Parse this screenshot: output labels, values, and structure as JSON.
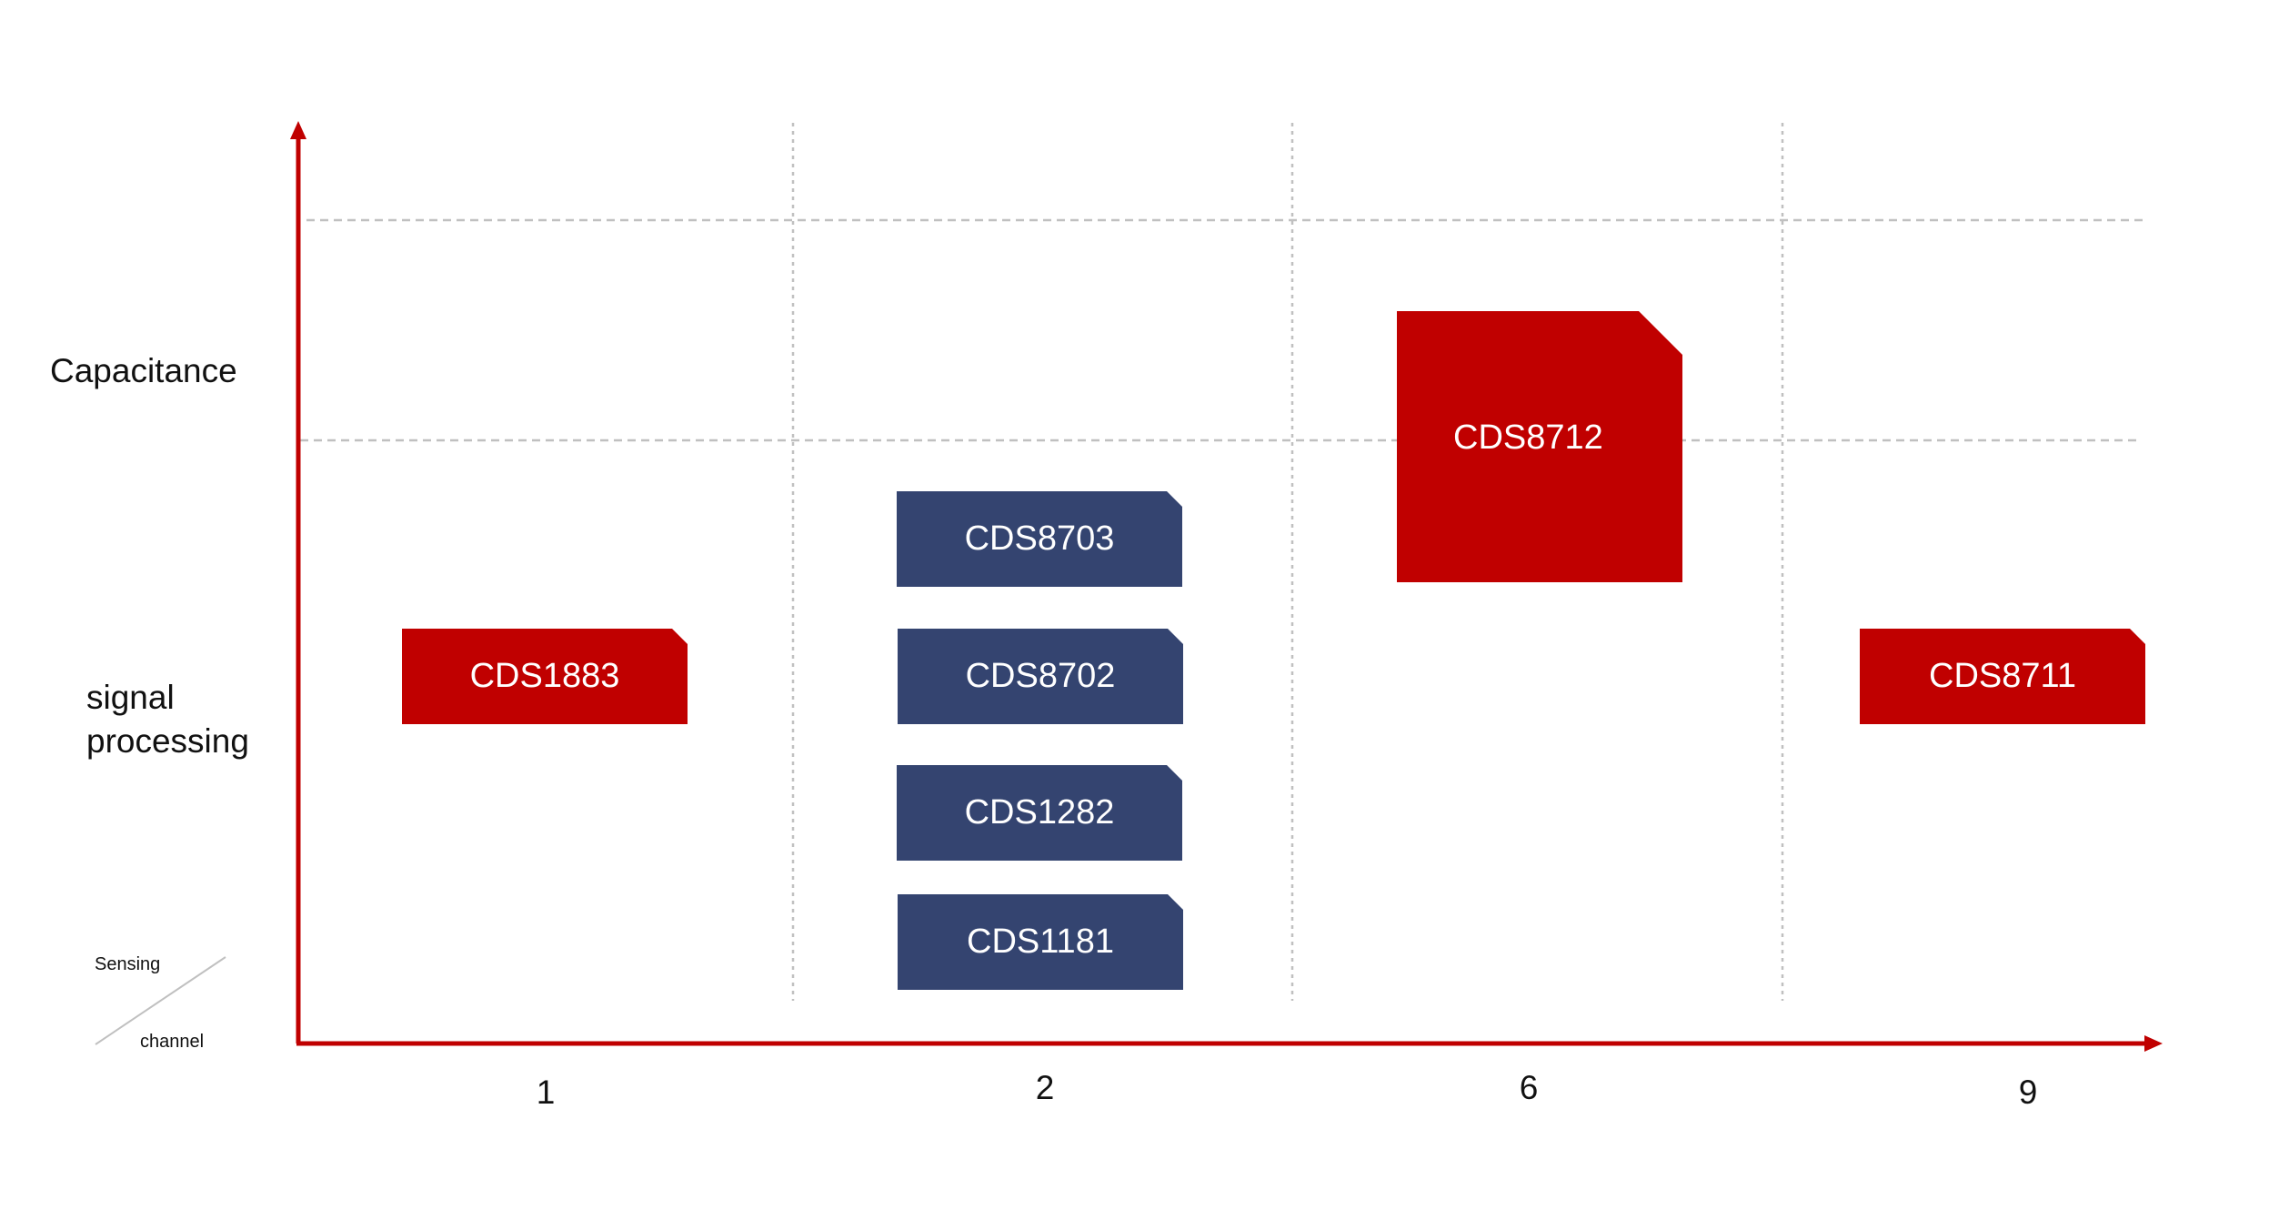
{
  "colors": {
    "axis": "#c00000",
    "grid": "#c0c0c0",
    "chip_red": "#c00000",
    "chip_blue": "#344470",
    "text": "#111111"
  },
  "row_labels": {
    "capacitance": "Capacitance",
    "signal_processing": "signal\nprocessing"
  },
  "corner": {
    "top": "Sensing",
    "bottom": "channel"
  },
  "x_ticks": [
    "1",
    "2",
    "6",
    "9"
  ],
  "chips": [
    {
      "label": "CDS1883",
      "channels": "1",
      "category": "signal processing",
      "color": "red"
    },
    {
      "label": "CDS8703",
      "channels": "2",
      "category": "signal processing",
      "color": "blue"
    },
    {
      "label": "CDS8702",
      "channels": "2",
      "category": "signal processing",
      "color": "blue"
    },
    {
      "label": "CDS1282",
      "channels": "2",
      "category": "signal processing",
      "color": "blue"
    },
    {
      "label": "CDS1181",
      "channels": "2",
      "category": "signal processing",
      "color": "blue"
    },
    {
      "label": "CDS8712",
      "channels": "6",
      "category": "Capacitance / signal processing",
      "color": "red"
    },
    {
      "label": "CDS8711",
      "channels": "9",
      "category": "signal processing",
      "color": "red"
    }
  ]
}
